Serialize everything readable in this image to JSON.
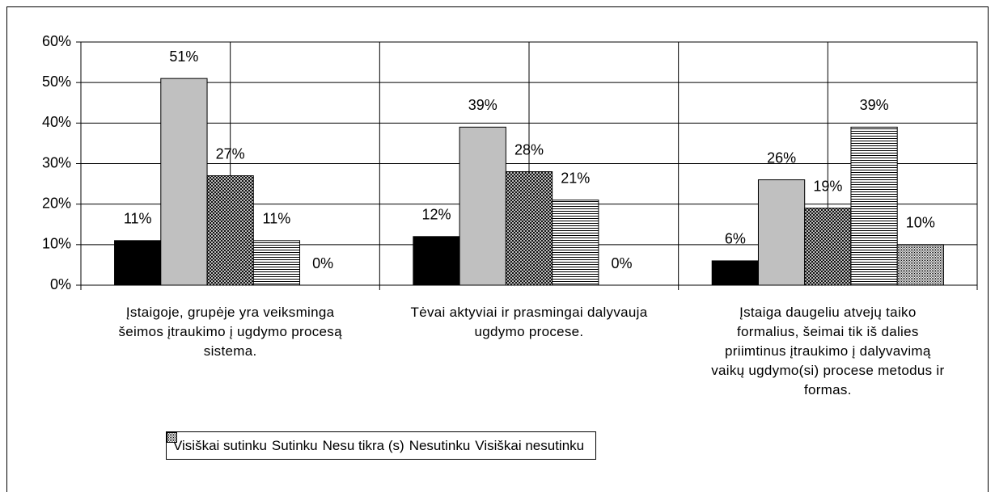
{
  "chart_data": {
    "type": "bar",
    "categories": [
      "Įstaigoje, grupėje yra veiksminga šeimos įtraukimo į ugdymo procesą sistema.",
      "Tėvai aktyviai ir prasmingai dalyvauja ugdymo procese.",
      "Įstaiga daugeliu atvejų taiko formalius, šeimai tik iš dalies priimtinus įtraukimo į dalyvavimą vaikų ugdymo(si) procese metodus ir formas."
    ],
    "series": [
      {
        "name": "Visiškai sutinku",
        "color": "#000000",
        "pattern": "solid",
        "values": [
          11,
          12,
          6
        ],
        "value_labels": [
          "11%",
          "12%",
          "6%"
        ]
      },
      {
        "name": "Sutinku",
        "color": "#c0c0c0",
        "pattern": "solid",
        "values": [
          51,
          39,
          26
        ],
        "value_labels": [
          "51%",
          "39%",
          "26%"
        ]
      },
      {
        "name": "Nesu tikra (s)",
        "color": "#000000",
        "pattern": "crosshatch",
        "values": [
          27,
          28,
          19
        ],
        "value_labels": [
          "27%",
          "28%",
          "19%"
        ]
      },
      {
        "name": "Nesutinku",
        "color": "#000000",
        "pattern": "horizontal",
        "values": [
          11,
          21,
          39
        ],
        "value_labels": [
          "11%",
          "21%",
          "39%"
        ]
      },
      {
        "name": "Visiškai nesutinku",
        "color": "#000000",
        "pattern": "dots",
        "values": [
          0,
          0,
          10
        ],
        "value_labels": [
          "0%",
          "0%",
          "10%"
        ]
      }
    ],
    "ylim": [
      0,
      60
    ],
    "yticks": [
      {
        "value": 0,
        "label": "0%"
      },
      {
        "value": 10,
        "label": "10%"
      },
      {
        "value": 20,
        "label": "20%"
      },
      {
        "value": 30,
        "label": "30%"
      },
      {
        "value": 40,
        "label": "40%"
      },
      {
        "value": 50,
        "label": "50%"
      },
      {
        "value": 60,
        "label": "60%"
      }
    ],
    "grid": true,
    "legend": "bottom"
  }
}
